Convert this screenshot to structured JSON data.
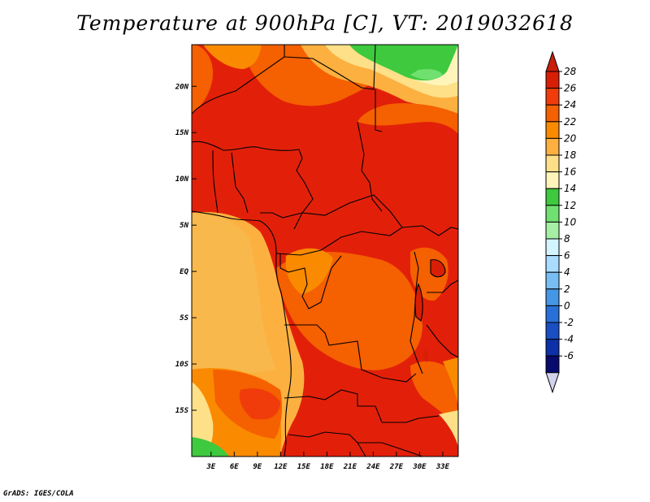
{
  "title": "Temperature at 900hPa [C], VT: 2019032618",
  "footer": "GrADS: IGES/COLA",
  "map": {
    "lon_ticks": [
      "3E",
      "6E",
      "9E",
      "12E",
      "15E",
      "18E",
      "21E",
      "24E",
      "27E",
      "30E",
      "33E"
    ],
    "lat_ticks": [
      "20N",
      "15N",
      "10N",
      "5N",
      "EQ",
      "5S",
      "10S",
      "15S"
    ]
  },
  "colorbar": {
    "labels": [
      "28",
      "26",
      "24",
      "22",
      "20",
      "18",
      "16",
      "14",
      "12",
      "10",
      "8",
      "6",
      "4",
      "2",
      "0",
      "-2",
      "-4",
      "-6"
    ],
    "colors": [
      "#d81e05",
      "#f03c0a",
      "#f56000",
      "#fa8a00",
      "#fcb040",
      "#fde088",
      "#fff5bb",
      "#3ec93e",
      "#70e070",
      "#a6f0a6",
      "#d2f5ff",
      "#aadcff",
      "#78bef5",
      "#4696e6",
      "#2870d7",
      "#1a4fc3",
      "#0d2fa8",
      "#080a6e"
    ],
    "top_triangle_color": "#c81e0a",
    "bottom_triangle_color": "#d2d2ee"
  }
}
